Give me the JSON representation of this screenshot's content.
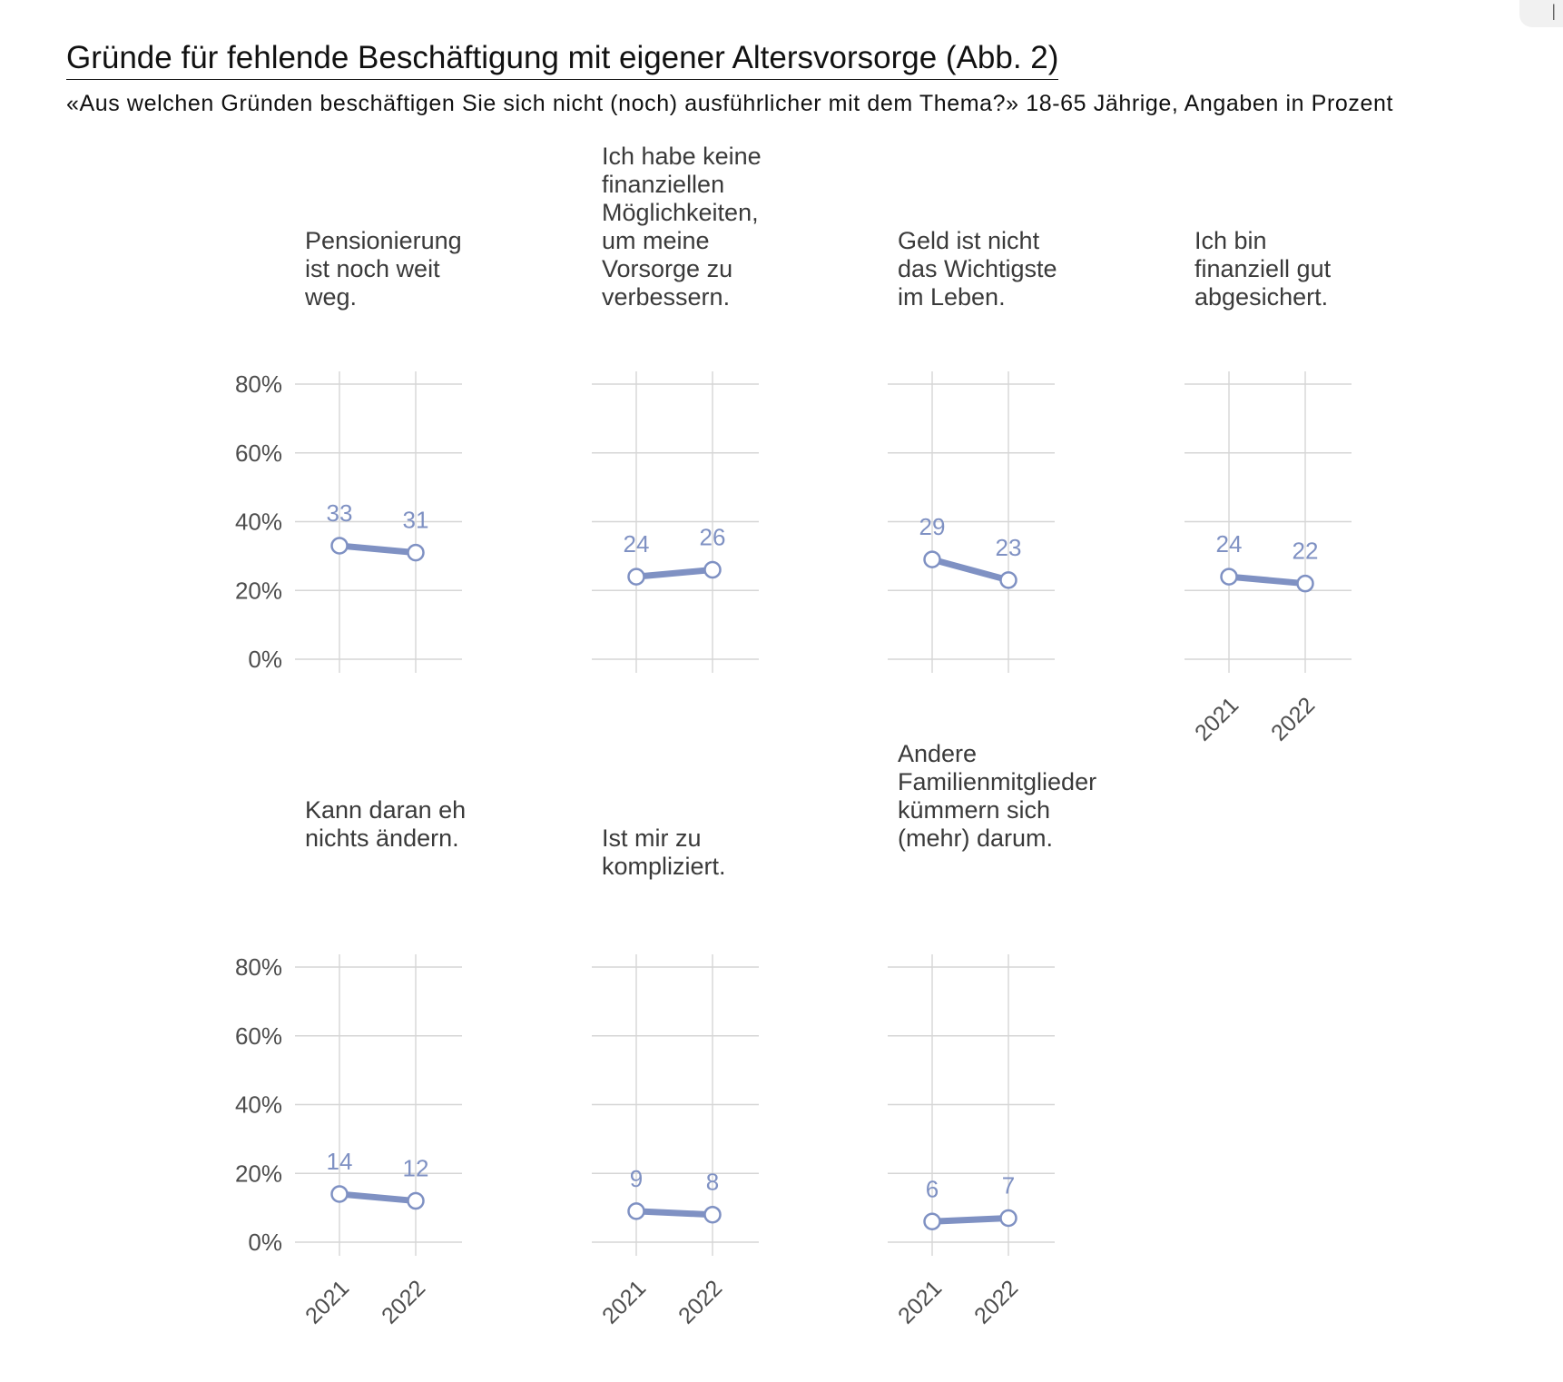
{
  "page": {
    "title": "Gründe für fehlende Beschäftigung mit eigener Altersvorsorge  (Abb. 2)",
    "subtitle": "«Aus welchen Gründen beschäftigen Sie sich nicht (noch) ausführlicher mit dem Thema?» 18-65 Jährige, Angaben in Prozent"
  },
  "chart_data": {
    "type": "line",
    "x": [
      "2021",
      "2022"
    ],
    "y_ticks": [
      "0%",
      "20%",
      "40%",
      "60%",
      "80%"
    ],
    "ylim": [
      0,
      80
    ],
    "grid": true,
    "line_color": "#7f91c3",
    "facets": [
      {
        "title": "Pensionierung ist noch weit weg.",
        "values": [
          33,
          31
        ]
      },
      {
        "title": "Ich habe keine finanziellen Möglichkeiten, um meine Vorsorge zu verbessern.",
        "values": [
          24,
          26
        ]
      },
      {
        "title": "Geld ist nicht das Wichtigste im Leben.",
        "values": [
          29,
          23
        ]
      },
      {
        "title": "Ich bin finanziell gut abgesichert.",
        "values": [
          24,
          22
        ]
      },
      {
        "title": "Kann daran eh nichts ändern.",
        "values": [
          14,
          12
        ]
      },
      {
        "title": "Ist mir zu kompliziert.",
        "values": [
          9,
          8
        ]
      },
      {
        "title": "Andere Familienmitglieder kümmern sich (mehr) darum.",
        "values": [
          6,
          7
        ]
      }
    ]
  }
}
